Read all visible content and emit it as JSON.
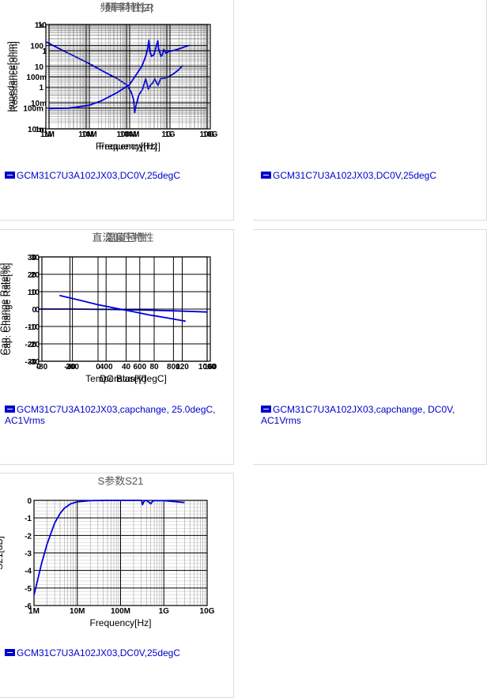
{
  "colors": {
    "series": "#0000dd",
    "grid": "#000000",
    "legend": "#0000cc"
  },
  "charts": [
    {
      "id": "c1",
      "title": "頻率特性|Z|",
      "xlabel": "Frequency[Hz]",
      "ylabel": "Impedance[ohm]",
      "legend_text": "GCM31C7U3A102JX03,DC0V,25degC",
      "x_ticks": [
        "1M",
        "10M",
        "100M",
        "1G",
        "10G"
      ],
      "y_ticks": [
        "1k",
        "100",
        "10",
        "1",
        "100m",
        "10m"
      ]
    },
    {
      "id": "c2",
      "title": "頻率特性R",
      "xlabel": "Frequency[Hz]",
      "ylabel": "Resistance[ohm]",
      "legend_text": "GCM31C7U3A102JX03,DC0V,25degC",
      "x_ticks": [
        "1M",
        "10M",
        "100M",
        "1G",
        "10G"
      ],
      "y_ticks": [
        "10",
        "1",
        "100m",
        "10m",
        "1m"
      ]
    },
    {
      "id": "c3",
      "title": "直流偏圧特性",
      "xlabel": "DC Bias[V]",
      "ylabel": "Cap. Change Rate[%]",
      "legend_text": "GCM31C7U3A102JX03,capchange, 25.0degC, AC1Vrms",
      "x_ticks": [
        "0",
        "200",
        "400",
        "600",
        "800",
        "1000"
      ],
      "y_ticks": [
        "30",
        "20",
        "10",
        "0",
        "-10",
        "-20",
        "-30"
      ]
    },
    {
      "id": "c4",
      "title": "温度特性",
      "xlabel": "Temperature[degC]",
      "ylabel": "Cap. Change Rate[%]",
      "legend_text": "GCM31C7U3A102JX03,capchange, DC0V, AC1Vrms",
      "x_ticks": [
        "-80",
        "-40",
        "0",
        "40",
        "80",
        "120",
        "160"
      ],
      "y_ticks": [
        "30",
        "20",
        "10",
        "0",
        "-10",
        "-20",
        "-30"
      ]
    },
    {
      "id": "c5",
      "title": "S参数S21",
      "xlabel": "Frequency[Hz]",
      "ylabel": "S21[dB]",
      "legend_text": "GCM31C7U3A102JX03,DC0V,25degC",
      "x_ticks": [
        "1M",
        "10M",
        "100M",
        "1G",
        "10G"
      ],
      "y_ticks": [
        "0",
        "-1",
        "-2",
        "-3",
        "-4",
        "-5",
        "-6"
      ]
    }
  ],
  "chart_data": [
    {
      "type": "line",
      "title": "頻率特性|Z|",
      "xlabel": "Frequency[Hz]",
      "ylabel": "Impedance[ohm]",
      "xscale": "log",
      "yscale": "log",
      "xlim": [
        1000000,
        10000000000
      ],
      "ylim": [
        0.01,
        1000
      ],
      "grid": true,
      "series": [
        {
          "x": [
            1000000,
            3000000,
            10000000,
            30000000,
            60000000,
            100000000,
            130000000,
            150000000,
            160000000,
            170000000,
            200000000,
            250000000,
            300000000,
            350000000,
            400000000,
            450000000,
            500000000,
            600000000,
            700000000,
            1000000000,
            1500000000,
            2000000000,
            2500000000
          ],
          "y": [
            150,
            50,
            16,
            5,
            2.5,
            1.3,
            0.6,
            0.25,
            0.06,
            0.12,
            0.4,
            0.8,
            2.5,
            0.8,
            1.3,
            1.6,
            2.5,
            1.2,
            2.5,
            2.8,
            4.5,
            7,
            11
          ]
        }
      ]
    },
    {
      "type": "line",
      "title": "頻率特性R",
      "xlabel": "Frequency[Hz]",
      "ylabel": "Resistance[ohm]",
      "xscale": "log",
      "yscale": "log",
      "xlim": [
        1000000,
        10000000000
      ],
      "ylim": [
        0.001,
        10
      ],
      "grid": true,
      "series": [
        {
          "x": [
            1000000,
            3000000,
            10000000,
            20000000,
            50000000,
            100000000,
            200000000,
            250000000,
            280000000,
            300000000,
            320000000,
            350000000,
            400000000,
            500000000,
            520000000,
            600000000,
            650000000,
            700000000,
            800000000,
            900000000,
            1000000000,
            1500000000,
            3000000000
          ],
          "y": [
            0.006,
            0.0062,
            0.008,
            0.012,
            0.025,
            0.05,
            0.25,
            0.6,
            1.2,
            2.5,
            0.9,
            0.6,
            0.7,
            2.4,
            1.2,
            0.6,
            0.7,
            1.1,
            0.8,
            0.9,
            0.95,
            1.1,
            1.6
          ]
        }
      ]
    },
    {
      "type": "line",
      "title": "直流偏圧特性",
      "xlabel": "DC Bias[V]",
      "ylabel": "Cap. Change Rate[%]",
      "xlim": [
        0,
        1000
      ],
      "ylim": [
        -30,
        30
      ],
      "grid": true,
      "series": [
        {
          "x": [
            0,
            200,
            400,
            600,
            800,
            1000
          ],
          "y": [
            0,
            0,
            -0.2,
            -0.5,
            -1,
            -1.7
          ]
        }
      ]
    },
    {
      "type": "line",
      "title": "温度特性",
      "xlabel": "Temperature[degC]",
      "ylabel": "Cap. Change Rate[%]",
      "xlim": [
        -80,
        160
      ],
      "ylim": [
        -30,
        30
      ],
      "grid": true,
      "series": [
        {
          "x": [
            -55,
            -25,
            0,
            25,
            50,
            75,
            100,
            125
          ],
          "y": [
            7.8,
            5,
            2.5,
            0.5,
            -1.5,
            -3.5,
            -5.2,
            -7
          ]
        }
      ]
    },
    {
      "type": "line",
      "title": "S参数S21",
      "xlabel": "Frequency[Hz]",
      "ylabel": "S21[dB]",
      "xscale": "log",
      "xlim": [
        1000000,
        10000000000
      ],
      "ylim": [
        -6,
        0
      ],
      "grid": true,
      "series": [
        {
          "x": [
            1000000,
            1200000,
            1500000,
            2000000,
            3000000,
            4000000,
            5000000,
            7000000,
            10000000,
            20000000,
            50000000,
            100000000,
            300000000,
            310000000,
            320000000,
            350000000,
            380000000,
            400000000,
            450000000,
            500000000,
            550000000,
            600000000,
            1000000000,
            2000000000,
            3000000000
          ],
          "y": [
            -5.4,
            -4.6,
            -3.6,
            -2.5,
            -1.3,
            -0.75,
            -0.45,
            -0.2,
            -0.08,
            -0.02,
            0,
            0,
            0,
            -0.05,
            -0.25,
            -0.05,
            0,
            -0.02,
            -0.1,
            -0.2,
            -0.05,
            -0.02,
            -0.02,
            -0.08,
            -0.12
          ]
        }
      ]
    }
  ]
}
